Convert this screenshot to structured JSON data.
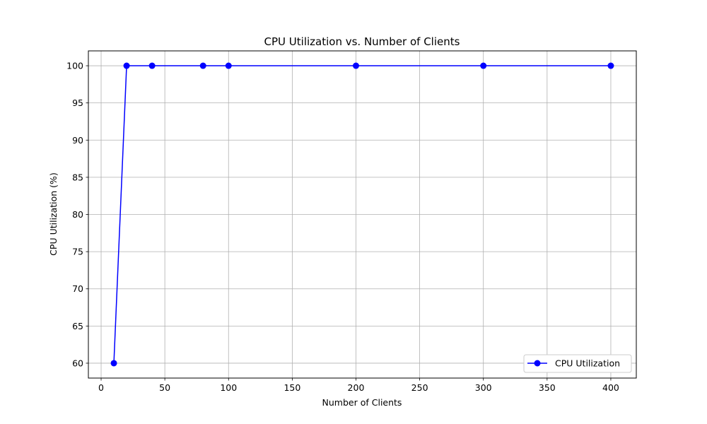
{
  "chart_data": {
    "type": "line",
    "title": "CPU Utilization vs. Number of Clients",
    "xlabel": "Number of Clients",
    "ylabel": "CPU Utilization (%)",
    "xlim": [
      -10,
      420
    ],
    "ylim": [
      58,
      102
    ],
    "xticks": [
      0,
      50,
      100,
      150,
      200,
      250,
      300,
      350,
      400
    ],
    "yticks": [
      60,
      65,
      70,
      75,
      80,
      85,
      90,
      95,
      100
    ],
    "grid": true,
    "legend_position": "lower-right",
    "series": [
      {
        "name": "CPU Utilization",
        "color": "#0000ff",
        "marker": "circle",
        "x": [
          10,
          20,
          40,
          80,
          100,
          200,
          300,
          400
        ],
        "y": [
          60,
          100,
          100,
          100,
          100,
          100,
          100,
          100
        ]
      }
    ]
  }
}
